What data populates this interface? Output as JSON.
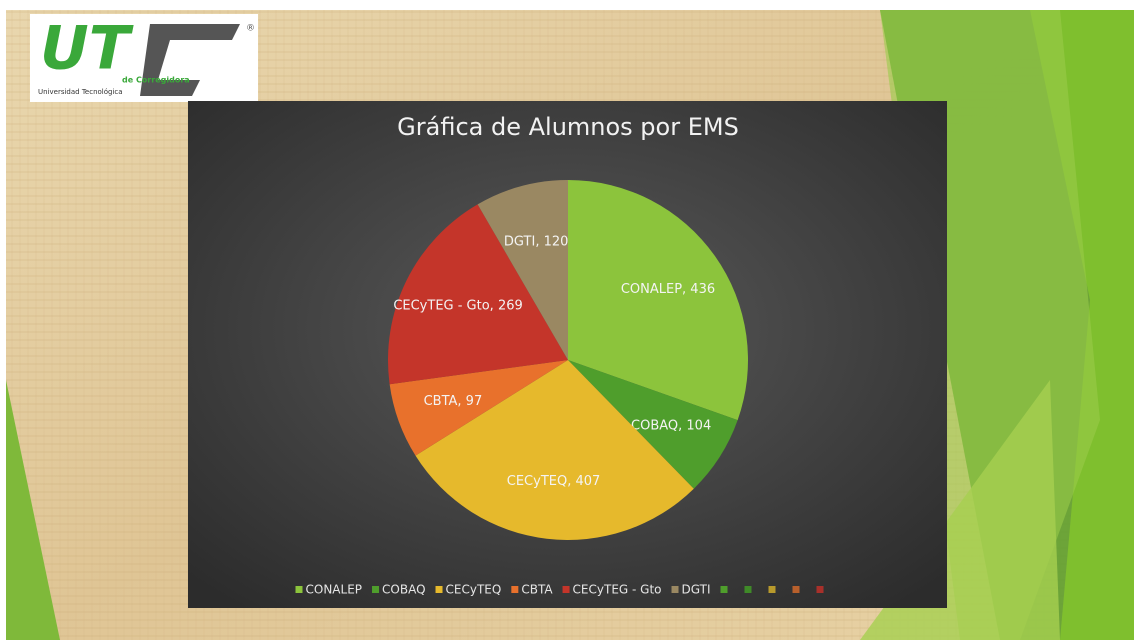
{
  "logo": {
    "mark": "UT",
    "campus": "de Corregidora",
    "name": "Universidad Tecnológica",
    "registered": "®"
  },
  "chart_data": {
    "type": "pie",
    "title": "Gráfica de Alumnos por EMS",
    "categories": [
      "CONALEP",
      "COBAQ",
      "CECyTEQ",
      "CBTA",
      "CECyTEG - Gto",
      "DGTI"
    ],
    "values": [
      436,
      104,
      407,
      97,
      269,
      120
    ],
    "value_labels": [
      "CONALEP, 436",
      "COBAQ, 104",
      "CECyTEQ, 407",
      "CBTA, 97",
      "CECyTEG - Gto, 269",
      "DGTI, 120"
    ],
    "colors": [
      "#8cc43c",
      "#4f9e2c",
      "#e6b92c",
      "#e8712c",
      "#c4352a",
      "#9a8862"
    ],
    "legend": "bottom"
  }
}
